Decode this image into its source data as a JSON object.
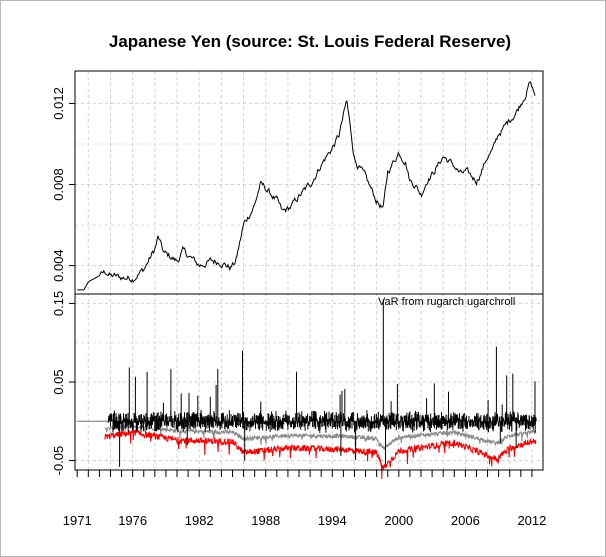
{
  "chart_data": {
    "title": "Japanese Yen (source: St. Louis Federal Reserve)",
    "x_tick_labels": [
      "1971",
      "1976",
      "1982",
      "1988",
      "1994",
      "2000",
      "2006",
      "2012"
    ],
    "x_range": [
      1970.8,
      2013.0
    ],
    "grid": true,
    "panels": [
      {
        "type": "line",
        "yticks": [
          "0.004",
          "0.008",
          "0.012"
        ],
        "ylim": [
          0.0026,
          0.0136
        ],
        "series": [
          {
            "color": "#000000",
            "x": [
              1971.0,
              1971.6,
              1972.0,
              1973.0,
              1973.6,
              1974.0,
              1975.0,
              1976.0,
              1977.0,
              1978.0,
              1978.3,
              1978.8,
              1979.5,
              1980.0,
              1980.5,
              1981.0,
              1982.0,
              1983.0,
              1984.0,
              1984.8,
              1985.3,
              1986.0,
              1986.6,
              1987.0,
              1987.5,
              1988.0,
              1989.0,
              1989.5,
              1990.3,
              1991.0,
              1992.0,
              1993.0,
              1994.0,
              1994.6,
              1995.3,
              1995.7,
              1996.0,
              1997.0,
              1998.0,
              1998.6,
              1999.0,
              1999.5,
              2000.0,
              2000.6,
              2001.0,
              2001.5,
              2002.0,
              2002.6,
              2003.0,
              2003.6,
              2004.0,
              2005.0,
              2005.6,
              2006.0,
              2007.0,
              2007.4,
              2008.0,
              2008.5,
              2009.0,
              2009.5,
              2010.0,
              2010.6,
              2011.0,
              2011.5,
              2011.8,
              2012.0,
              2012.3
            ],
            "values": [
              0.0028,
              0.0028,
              0.0032,
              0.0035,
              0.0037,
              0.0035,
              0.0034,
              0.0034,
              0.0038,
              0.0048,
              0.0054,
              0.0046,
              0.0044,
              0.0042,
              0.0047,
              0.0045,
              0.004,
              0.0042,
              0.0042,
              0.0039,
              0.0042,
              0.006,
              0.0066,
              0.007,
              0.008,
              0.0078,
              0.0072,
              0.0066,
              0.0069,
              0.0074,
              0.008,
              0.009,
              0.0098,
              0.0104,
              0.0121,
              0.0105,
              0.0093,
              0.0083,
              0.0072,
              0.0068,
              0.0086,
              0.0091,
              0.0096,
              0.0092,
              0.0082,
              0.008,
              0.0075,
              0.0083,
              0.0085,
              0.009,
              0.0094,
              0.0089,
              0.0085,
              0.0086,
              0.0082,
              0.0086,
              0.0094,
              0.0097,
              0.0105,
              0.0108,
              0.0112,
              0.0116,
              0.012,
              0.0126,
              0.013,
              0.0128,
              0.0124
            ]
          }
        ]
      },
      {
        "type": "line",
        "annotation": "VaR from rugarch ugarchroll",
        "yticks": [
          "-0.05",
          "0.05",
          "0.15"
        ],
        "ylim": [
          -0.062,
          0.162
        ],
        "series": [
          {
            "color": "#000000",
            "x": [
              1971.0,
              2012.4
            ],
            "values": [
              0.0,
              0.0
            ],
            "noise_from": 1973.8,
            "amplitude": 0.03
          },
          {
            "color": "#888888",
            "x": [
              1973.5,
              1976.0,
              1980.0,
              1985.0,
              1986.0,
              1990.0,
              1995.0,
              1998.0,
              1998.6,
              2000.0,
              2005.0,
              2008.8,
              2010.0,
              2012.4
            ],
            "values": [
              -0.01,
              -0.006,
              -0.012,
              -0.014,
              -0.022,
              -0.018,
              -0.019,
              -0.022,
              -0.035,
              -0.02,
              -0.014,
              -0.028,
              -0.018,
              -0.013
            ]
          },
          {
            "color": "#ee0000",
            "x": [
              1973.5,
              1976.0,
              1980.0,
              1985.0,
              1986.0,
              1990.0,
              1995.0,
              1998.0,
              1998.6,
              2000.0,
              2005.0,
              2008.8,
              2010.0,
              2012.4
            ],
            "values": [
              -0.02,
              -0.014,
              -0.024,
              -0.026,
              -0.04,
              -0.034,
              -0.036,
              -0.04,
              -0.06,
              -0.038,
              -0.027,
              -0.048,
              -0.034,
              -0.024
            ]
          }
        ]
      }
    ]
  }
}
